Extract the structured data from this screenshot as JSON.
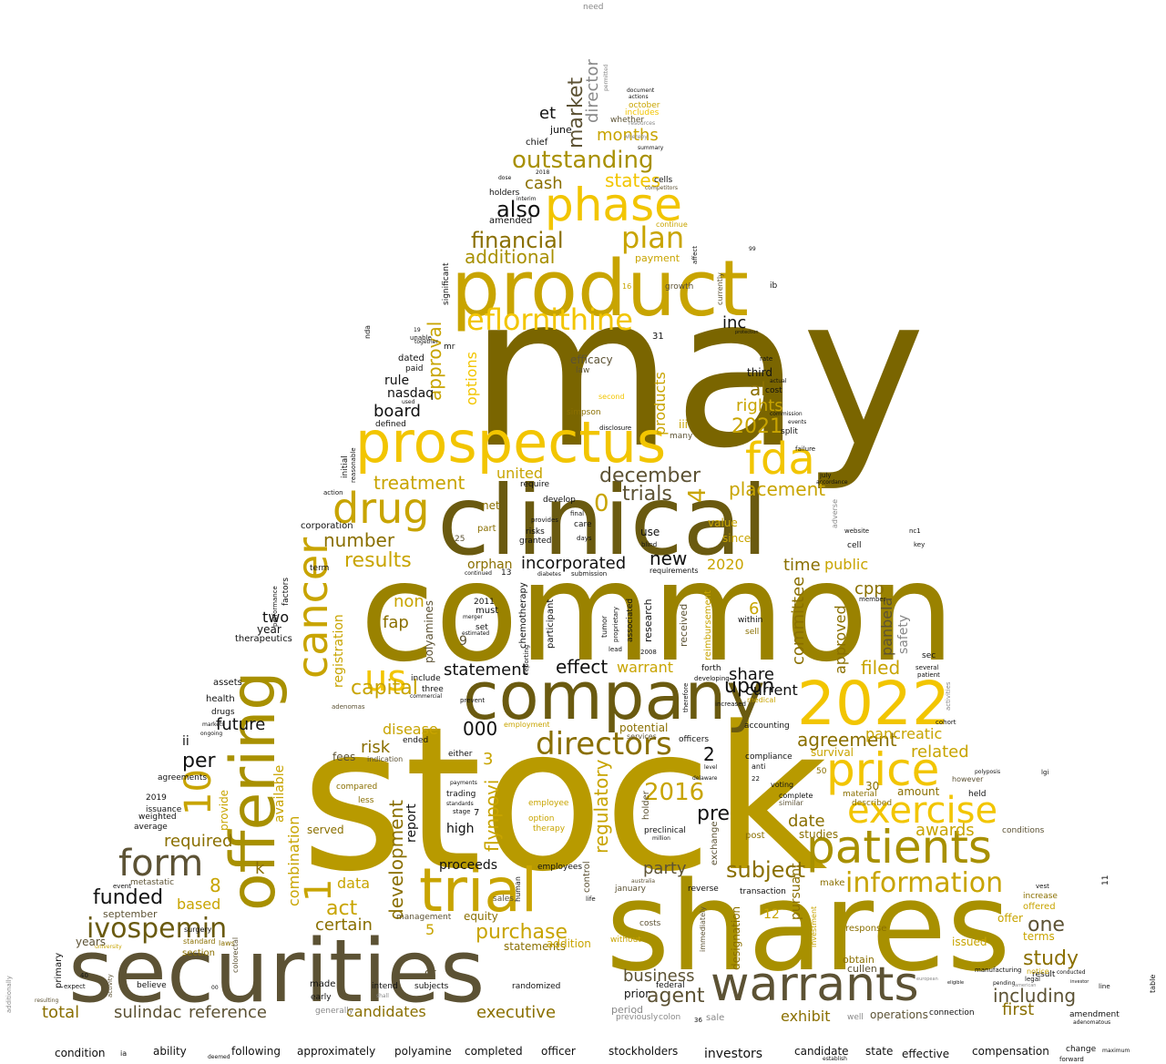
{
  "palette": {
    "dark_olive": "#5c5234",
    "olive": "#8a6f00",
    "gold": "#c8a400",
    "bright_gold": "#f2c500",
    "black": "#111111",
    "grey": "#888888"
  },
  "words": {
    "may": "may",
    "stock": "stock",
    "common": "common",
    "shares": "shares",
    "securities": "securities",
    "clinical": "clinical",
    "product": "product",
    "company": "company",
    "prospectus": "prospectus",
    "warrants": "warrants",
    "offering": "offering",
    "n2022": "2022",
    "trial": "trial",
    "patients": "patients",
    "phase": "phase",
    "price": "price",
    "fda": "fda",
    "drug": "drug",
    "cancer": "cancer",
    "exercise": "exercise",
    "form": "form",
    "information": "information",
    "eflornithine": "eflornithine",
    "ivospemin": "ivospemin",
    "directors": "directors",
    "us": "us",
    "n10": "10",
    "outstanding": "outstanding",
    "financial": "financial",
    "additional": "additional",
    "plan": "plan",
    "also": "also",
    "market": "market",
    "director": "director",
    "months": "months",
    "states": "states",
    "cash": "cash",
    "et": "et",
    "june": "june",
    "chief": "chief",
    "october": "october",
    "includes": "includes",
    "whether": "whether",
    "inc": "inc",
    "approval": "approval",
    "options": "options",
    "treatment": "treatment",
    "united": "united",
    "december": "december",
    "trials": "trials",
    "n4": "4",
    "n0": "0",
    "number": "number",
    "results": "results",
    "incorporated": "incorporated",
    "orphan": "orphan",
    "new": "new",
    "placement": "placement",
    "n2021": "2021",
    "rights": "rights",
    "al": "al",
    "third": "third",
    "upon": "upon",
    "share": "share",
    "current": "current",
    "agreement": "agreement",
    "pancreatic": "pancreatic",
    "related": "related",
    "statement": "statement",
    "effect": "effect",
    "warrant": "warrant",
    "capital": "capital",
    "disease": "disease",
    "risk": "risk",
    "n000": "000",
    "n2016": "2016",
    "pre": "pre",
    "regulatory": "regulatory",
    "n2": "2",
    "subject": "subject",
    "party": "party",
    "agent": "agent",
    "business": "business",
    "awards": "awards",
    "date": "date",
    "studies": "studies",
    "n1": "1",
    "funded": "funded",
    "required": "required",
    "based": "based",
    "act": "act",
    "certain": "certain",
    "data": "data",
    "purchase": "purchase",
    "development": "development",
    "flynpovi": "flynpovi",
    "executive": "executive",
    "candidates": "candidates",
    "sulindac": "sulindac",
    "reference": "reference",
    "total": "total",
    "including": "including",
    "study": "study",
    "one": "one",
    "first": "first",
    "exhibit": "exhibit",
    "cpp": "cpp",
    "time": "time",
    "public": "public",
    "n2020": "2020",
    "committee": "committee",
    "approved": "approved",
    "filed": "filed",
    "panbela": "panbela",
    "safety": "safety",
    "n6": "6",
    "n8": "8",
    "per": "per",
    "ii": "ii",
    "future": "future",
    "two": "two",
    "year": "year",
    "therapeutics": "therapeutics",
    "k": "k",
    "registration": "registration",
    "available": "available",
    "combination": "combination",
    "provide": "provide",
    "non": "non",
    "fap": "fap",
    "polyamines": "polyamines",
    "products": "products",
    "board": "board",
    "nasdaq": "nasdaq",
    "rule": "rule",
    "dated": "dated",
    "paid": "paid",
    "defined": "defined",
    "holders": "holders",
    "amended": "amended",
    "efficacy": "efficacy",
    "law": "law",
    "iii": "iii",
    "value": "value",
    "amount": "amount",
    "since": "since",
    "cost": "cost",
    "split": "split",
    "initial": "initial",
    "reasonable": "reasonable",
    "corporation": "corporation",
    "action": "action",
    "term": "term",
    "performance": "performance",
    "factors": "factors",
    "assets": "assets",
    "health": "health",
    "drugs": "drugs",
    "agreements": "agreements",
    "n2019": "2019",
    "issuance": "issuance",
    "weighted": "weighted",
    "average": "average",
    "event": "event",
    "metastatic": "metastatic",
    "september": "september",
    "years": "years",
    "primary": "primary",
    "expect": "expect",
    "believe": "believe",
    "made": "made",
    "early": "early",
    "intend": "intend",
    "subjects": "subjects",
    "randomized": "randomized",
    "statements": "statements",
    "net": "net",
    "part": "part",
    "risks": "risks",
    "granted": "granted",
    "require": "require",
    "develop": "develop",
    "care": "care",
    "days": "days",
    "final": "final",
    "provides": "provides",
    "use": "use",
    "blind": "blind",
    "cell": "cell",
    "member": "member",
    "website": "website",
    "key": "key",
    "nc1": "nc1",
    "sec": "sec",
    "patient": "patient",
    "several": "several",
    "cohort": "cohort",
    "activities": "activities",
    "table": "table",
    "lgi": "lgi",
    "n11": "11",
    "vest": "vest",
    "result": "result",
    "line": "line",
    "amendment": "amendment",
    "adenomatous": "adenomatous",
    "change": "change",
    "maximum": "maximum",
    "forward": "forward",
    "additionally": "additionally",
    "condition": "condition",
    "ia": "ia",
    "ability": "ability",
    "deemed": "deemed",
    "following": "following",
    "approximately": "approximately",
    "polyamine": "polyamine",
    "completed": "completed",
    "officer": "officer",
    "stockholders": "stockholders",
    "investors": "investors",
    "candidate": "candidate",
    "state": "state",
    "effective": "effective",
    "compensation": "compensation",
    "establish": "establish",
    "need": "need",
    "permitted": "permitted",
    "document": "document",
    "actions": "actions",
    "summary": "summary",
    "dose": "dose",
    "n2018": "2018",
    "cells": "cells",
    "interim": "interim",
    "competitors": "competitors",
    "continue": "continue",
    "payment": "payment",
    "growth": "growth",
    "significant": "significant",
    "mr": "mr",
    "unable": "unable",
    "n19": "19",
    "nda": "nda",
    "used": "used",
    "disclosure": "disclosure",
    "simpson": "simpson",
    "second": "second",
    "many": "many",
    "rate": "rate",
    "actual": "actual",
    "commission": "commission",
    "events": "events",
    "failure": "failure",
    "july": "july",
    "accordance": "accordance",
    "adverse": "adverse",
    "n99": "99",
    "ib": "ib",
    "protection": "protection",
    "affect": "affect",
    "currently": "currently",
    "n16": "16",
    "n31": "31",
    "n3": "3",
    "n5": "5",
    "n12": "12",
    "n30": "30",
    "n9": "9",
    "n7": "7",
    "n2011": "2011",
    "n2008": "2008",
    "n25": "25",
    "n22": "22",
    "n50": "50",
    "n40": "40",
    "n00": "00",
    "n36": "36",
    "must": "must",
    "set": "set",
    "estimated": "estimated",
    "merger": "merger",
    "include": "include",
    "three": "three",
    "commercial": "commercial",
    "prevent": "prevent",
    "employment": "employment",
    "officers": "officers",
    "either": "either",
    "ended": "ended",
    "fees": "fees",
    "served": "served",
    "high": "high",
    "trading": "trading",
    "standards": "standards",
    "stage": "stage",
    "payments": "payments",
    "less": "less",
    "compared": "compared",
    "proceeds": "proceeds",
    "report": "report",
    "employees": "employees",
    "human": "human",
    "sales": "sales",
    "equity": "equity",
    "management": "management",
    "addition": "addition",
    "dr": "dr",
    "prior": "prior",
    "period": "period",
    "previously": "previously",
    "federal": "federal",
    "costs": "costs",
    "january": "january",
    "australia": "australia",
    "life": "life",
    "control": "control",
    "without": "without",
    "sale": "sale",
    "colon": "colon",
    "well": "well",
    "operations": "operations",
    "connection": "connection",
    "cullen": "cullen",
    "obtain": "obtain",
    "response": "response",
    "issued": "issued",
    "offer": "offer",
    "terms": "terms",
    "offered": "offered",
    "increase": "increase",
    "notice": "notice",
    "conducted": "conducted",
    "manufacturing": "manufacturing",
    "legal": "legal",
    "conditions": "conditions",
    "held": "held",
    "however": "however",
    "polyposis": "polyposis",
    "eligible": "eligible",
    "pending": "pending",
    "investor": "investor",
    "make": "make",
    "transaction": "transaction",
    "reverse": "reverse",
    "exchange": "exchange",
    "designation": "designation",
    "pursuant": "pursuant",
    "investment": "investment",
    "post": "post",
    "similar": "similar",
    "complete": "complete",
    "described": "described",
    "material": "material",
    "survival": "survival",
    "voting": "voting",
    "compliance": "compliance",
    "anti": "anti",
    "accounting": "accounting",
    "within": "within",
    "sell": "sell",
    "increased": "increased",
    "developing": "developing",
    "therefore": "therefore",
    "forth": "forth",
    "received": "received",
    "reimbursement": "reimbursement",
    "research": "research",
    "lead": "lead",
    "associated": "associated",
    "proprietary": "proprietary",
    "tumor": "tumor",
    "participant": "participant",
    "chemotherapy": "chemotherapy",
    "reporting": "reporting",
    "diabetes": "diabetes",
    "submission": "submission",
    "requirements": "requirements",
    "continued": "continued",
    "n13": "13",
    "level": "level",
    "delaware": "delaware",
    "potential": "potential",
    "service": "services",
    "medical": "medical",
    "holder": "holder",
    "preclinical": "preclinical",
    "million": "million",
    "option": "option",
    "therapy": "therapy",
    "employee": "employee",
    "immediately": "immediately",
    "adenomas": "adenomas",
    "indication": "indication",
    "surgery": "surgery",
    "standard": "standard",
    "section": "section",
    "laws": "laws",
    "university": "university",
    "activity": "activity",
    "colorectal": "colorectal",
    "resulting": "resulting",
    "markets": "markets",
    "ongoing": "ongoing",
    "together": "together",
    "american": "american",
    "european": "european",
    "generally": "generally",
    "shall": "shall",
    "resources": "resources",
    "whereby": "whereby"
  }
}
